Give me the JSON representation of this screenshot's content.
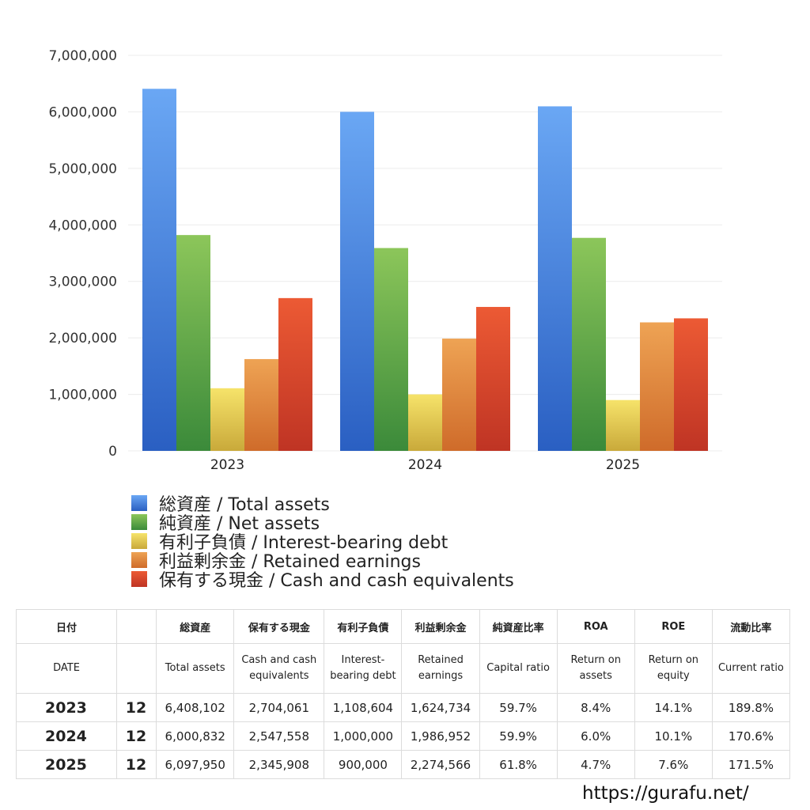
{
  "chart_data": {
    "type": "bar",
    "categories": [
      "2023",
      "2024",
      "2025"
    ],
    "series": [
      {
        "name": "総資産 / Total assets",
        "values": [
          6408102,
          6000832,
          6097950
        ],
        "color_top": "#6aa7f4",
        "color_bottom": "#2a5fc2"
      },
      {
        "name": "純資産 / Net assets",
        "values": [
          3820000,
          3590000,
          3770000
        ],
        "color_top": "#8cc65a",
        "color_bottom": "#3b8a3a"
      },
      {
        "name": "有利子負債 / Interest-bearing debt",
        "values": [
          1108604,
          1000000,
          900000
        ],
        "color_top": "#f6e36a",
        "color_bottom": "#c9a93a"
      },
      {
        "name": "利益剰余金 / Retained earnings",
        "values": [
          1624734,
          1986952,
          2274566
        ],
        "color_top": "#eea354",
        "color_bottom": "#cf6b2a"
      },
      {
        "name": "保有する現金 /  Cash and cash equivalents",
        "values": [
          2704061,
          2547558,
          2345908
        ],
        "color_top": "#ec5a34",
        "color_bottom": "#bf3424"
      }
    ],
    "ylim": [
      0,
      7000000
    ],
    "yticks": [
      0,
      1000000,
      2000000,
      3000000,
      4000000,
      5000000,
      6000000,
      7000000
    ],
    "ytick_labels": [
      "0",
      "1,000,000",
      "2,000,000",
      "3,000,000",
      "4,000,000",
      "5,000,000",
      "6,000,000",
      "7,000,000"
    ],
    "grid": true,
    "legend_position": "bottom-left"
  },
  "table": {
    "header_jp": [
      "日付",
      "",
      "総資産",
      "保有する現金",
      "有利子負債",
      "利益剰余金",
      "純資産比率",
      "ROA",
      "ROE",
      "流動比率"
    ],
    "header_en": [
      "DATE",
      "",
      "Total assets",
      "Cash and cash equivalents",
      "Interest-bearing debt",
      "Retained earnings",
      "Capital ratio",
      "Return on assets",
      "Return on equity",
      "Current ratio"
    ],
    "rows": [
      [
        "2023",
        "12",
        "6,408,102",
        "2,704,061",
        "1,108,604",
        "1,624,734",
        "59.7%",
        "8.4%",
        "14.1%",
        "189.8%"
      ],
      [
        "2024",
        "12",
        "6,000,832",
        "2,547,558",
        "1,000,000",
        "1,986,952",
        "59.9%",
        "6.0%",
        "10.1%",
        "170.6%"
      ],
      [
        "2025",
        "12",
        "6,097,950",
        "2,345,908",
        "900,000",
        "2,274,566",
        "61.8%",
        "4.7%",
        "7.6%",
        "171.5%"
      ]
    ]
  },
  "footer": {
    "url": "https://gurafu.net/"
  }
}
